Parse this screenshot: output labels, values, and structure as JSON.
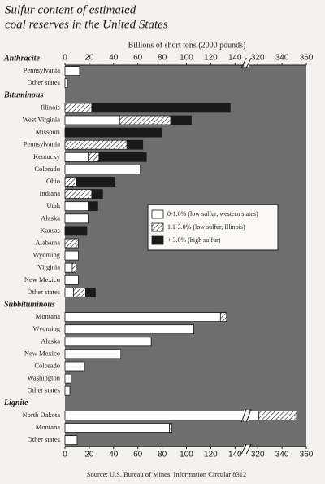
{
  "chart_data": {
    "type": "stacked-barh",
    "title": [
      "Sulfur content of estimated",
      "coal reserves in the United States"
    ],
    "x_label": "Billions of short tons (2000 pounds)",
    "source": "Source:  U.S. Bureau of Mines, Information Circular 8312",
    "groups": [
      {
        "name": "Anthracite",
        "categories": [
          "Pennsylvania",
          "Other states"
        ]
      },
      {
        "name": "Bituminous",
        "categories": [
          "Illinois",
          "West Virginia",
          "Missouri",
          "Pennsylvania",
          "Kentucky",
          "Colorado",
          "Ohio",
          "Indiana",
          "Utah",
          "Alaska",
          "Kansas",
          "Alabama",
          "Wyoming",
          "Virginia",
          "New Mexico",
          "Other states"
        ]
      },
      {
        "name": "Subbituminous",
        "categories": [
          "Montana",
          "Wyoming",
          "Alaska",
          "New Mexico",
          "Colorado",
          "Washington",
          "Other states"
        ]
      },
      {
        "name": "Lignite",
        "categories": [
          "North Dakota",
          "Montana",
          "Other states"
        ]
      }
    ],
    "series": [
      {
        "name": "0-1.0% (low sulfur, western states)",
        "color": "#ffffff",
        "values": [
          12,
          2,
          0,
          45,
          0,
          0,
          19,
          62,
          0,
          0,
          19,
          19,
          0,
          0,
          11,
          6,
          11,
          7,
          128,
          106,
          71,
          46,
          16,
          5,
          4,
          321,
          86,
          10
        ]
      },
      {
        "name": "1.1-3.0% (low sulfur, Illinois)",
        "color": "#ffffff",
        "hatch": true,
        "values": [
          0,
          0,
          22,
          42,
          0,
          51,
          9,
          0,
          9,
          22,
          0,
          0,
          0,
          11,
          0,
          3,
          0,
          10,
          5,
          0,
          0,
          0,
          0,
          0,
          0,
          31,
          2,
          0
        ]
      },
      {
        "name": "+ 3.0% (high sulfur)",
        "color": "#1a1a1a",
        "values": [
          0,
          0,
          114,
          17,
          80,
          13,
          39,
          0,
          32,
          9,
          8,
          0,
          18,
          0,
          0,
          0,
          0,
          8,
          0,
          0,
          0,
          0,
          0,
          0,
          0,
          0,
          0,
          0
        ]
      }
    ],
    "xlim": [
      0,
      360
    ],
    "x_break": [
      148,
      312
    ],
    "xticks": [
      0,
      20,
      40,
      60,
      80,
      100,
      120,
      140,
      320,
      340,
      360
    ],
    "background": "#6e6e6e"
  }
}
